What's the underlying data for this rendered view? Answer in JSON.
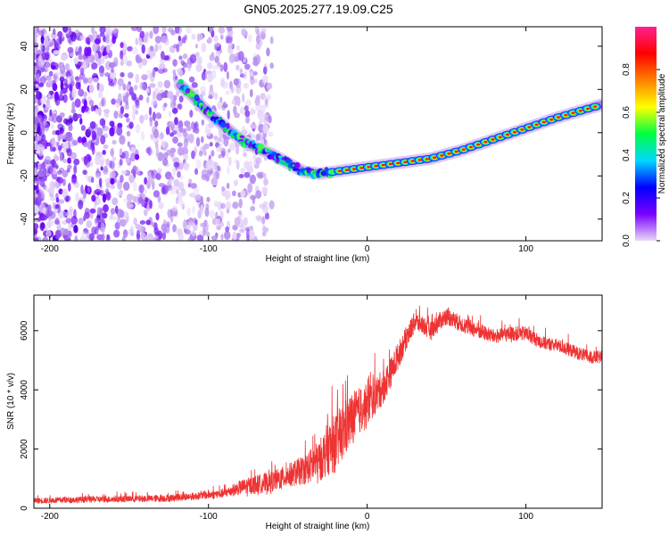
{
  "figure_title": "GN05.2025.277.19.09.C25",
  "colorbar": {
    "label": "Normalized spectral amplitude",
    "ticks": [
      0.0,
      0.2,
      0.4,
      0.6,
      0.8
    ],
    "tick_labels": [
      "0.0",
      "0.2",
      "0.4",
      "0.6",
      "0.8"
    ],
    "range": [
      0,
      1
    ],
    "colors": [
      "#e8d8f8",
      "#7a00ff",
      "#0000ff",
      "#00d8ff",
      "#00ff40",
      "#ffff00",
      "#ff8000",
      "#ff0000",
      "#ff2090"
    ]
  },
  "chart_data": [
    {
      "type": "heatmap",
      "title": "",
      "xlabel": "Height of straight line (km)",
      "ylabel": "Frequency (Hz)",
      "xlim": [
        -210,
        148
      ],
      "ylim": [
        -50,
        49
      ],
      "xticks": [
        -200,
        -100,
        0,
        100
      ],
      "xtick_labels": [
        "-200",
        "-100",
        "0",
        "100"
      ],
      "yticks": [
        -40,
        -20,
        0,
        20,
        40
      ],
      "ytick_labels": [
        "-40",
        "-20",
        "0",
        "20",
        "40"
      ],
      "ridge": {
        "x": [
          -118,
          -110,
          -100,
          -90,
          -80,
          -70,
          -60,
          -50,
          -40,
          -30,
          -20,
          0,
          20,
          40,
          60,
          80,
          100,
          120,
          148
        ],
        "y": [
          22,
          17,
          9,
          3,
          -3,
          -7,
          -10,
          -14,
          -18,
          -19,
          -18,
          -16,
          -14,
          -12,
          -8,
          -3,
          2,
          7,
          13
        ],
        "note": "strong narrow tone; high amplitude (red) for x > -20 km"
      },
      "noise_region": {
        "x_range": [
          -210,
          -70
        ],
        "description": "scattered low-amplitude speckle across all frequencies"
      }
    },
    {
      "type": "line",
      "title": "",
      "xlabel": "Height of straight line (km)",
      "ylabel": "SNR (10 * v/v)",
      "xlim": [
        -210,
        148
      ],
      "ylim": [
        0,
        7200
      ],
      "xticks": [
        -200,
        -100,
        0,
        100
      ],
      "xtick_labels": [
        "-200",
        "-100",
        "0",
        "100"
      ],
      "yticks": [
        0,
        2000,
        4000,
        6000
      ],
      "ytick_labels": [
        "0",
        "2000",
        "4000",
        "6000"
      ],
      "color": "#ee3333",
      "series": [
        {
          "name": "SNR",
          "x": [
            -210,
            -190,
            -170,
            -150,
            -130,
            -110,
            -100,
            -90,
            -80,
            -70,
            -60,
            -50,
            -40,
            -30,
            -25,
            -20,
            -15,
            -10,
            -5,
            0,
            5,
            10,
            15,
            20,
            25,
            30,
            35,
            40,
            45,
            50,
            60,
            70,
            80,
            90,
            100,
            110,
            120,
            130,
            140,
            148
          ],
          "y": [
            250,
            280,
            300,
            320,
            330,
            400,
            450,
            500,
            700,
            800,
            900,
            1100,
            1300,
            1600,
            2000,
            2200,
            2600,
            3000,
            3300,
            3500,
            3800,
            4100,
            4600,
            5200,
            5800,
            6300,
            6200,
            6000,
            6300,
            6500,
            6200,
            6000,
            5800,
            5900,
            5900,
            5600,
            5500,
            5300,
            5100,
            5100
          ],
          "spread": [
            200,
            210,
            220,
            230,
            240,
            260,
            280,
            300,
            500,
            650,
            700,
            800,
            1000,
            1400,
            1800,
            2000,
            2000,
            1800,
            1600,
            1400,
            1300,
            1200,
            1000,
            900,
            800,
            700,
            650,
            600,
            600,
            600,
            550,
            550,
            500,
            500,
            500,
            450,
            450,
            450,
            450,
            450
          ]
        }
      ]
    }
  ]
}
